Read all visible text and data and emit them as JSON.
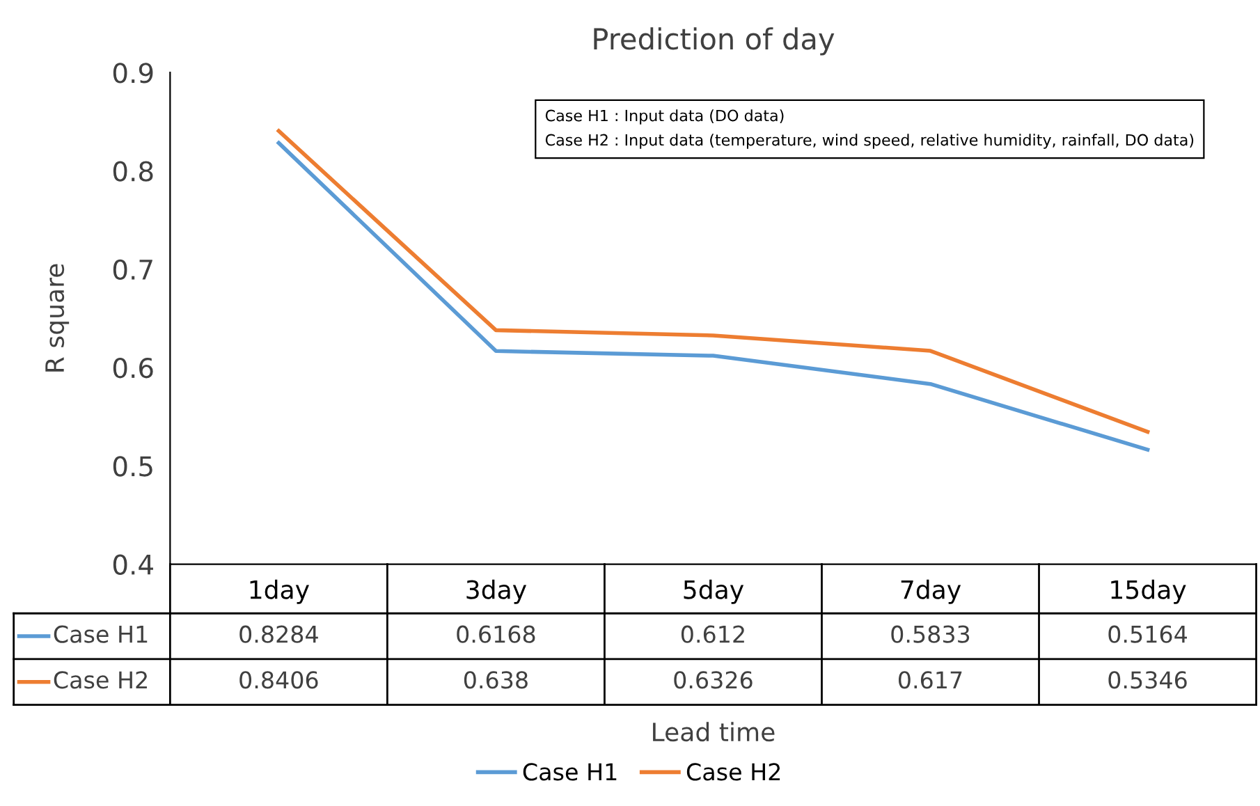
{
  "chart_data": {
    "type": "line",
    "title": "Prediction of day",
    "xlabel": "Lead time",
    "ylabel": "R square",
    "categories": [
      "1day",
      "3day",
      "5day",
      "7day",
      "15day"
    ],
    "series": [
      {
        "name": "Case H1",
        "color": "#5b9bd5",
        "values": [
          0.8284,
          0.6168,
          0.612,
          0.5833,
          0.5164
        ]
      },
      {
        "name": "Case H2",
        "color": "#ed7d31",
        "values": [
          0.8406,
          0.638,
          0.6326,
          0.617,
          0.5346
        ]
      }
    ],
    "ylim": [
      0.4,
      0.9
    ],
    "yticks": [
      0.4,
      0.5,
      0.6,
      0.7,
      0.8,
      0.9
    ],
    "annotations": [
      "Case H1 : Input data (DO data)",
      "Case H2 : Input data (temperature, wind speed, relative humidity, rainfall, DO data)"
    ],
    "data_labels": true,
    "legend": "bottom",
    "grid": false,
    "marker": "none",
    "line_style": "solid"
  }
}
